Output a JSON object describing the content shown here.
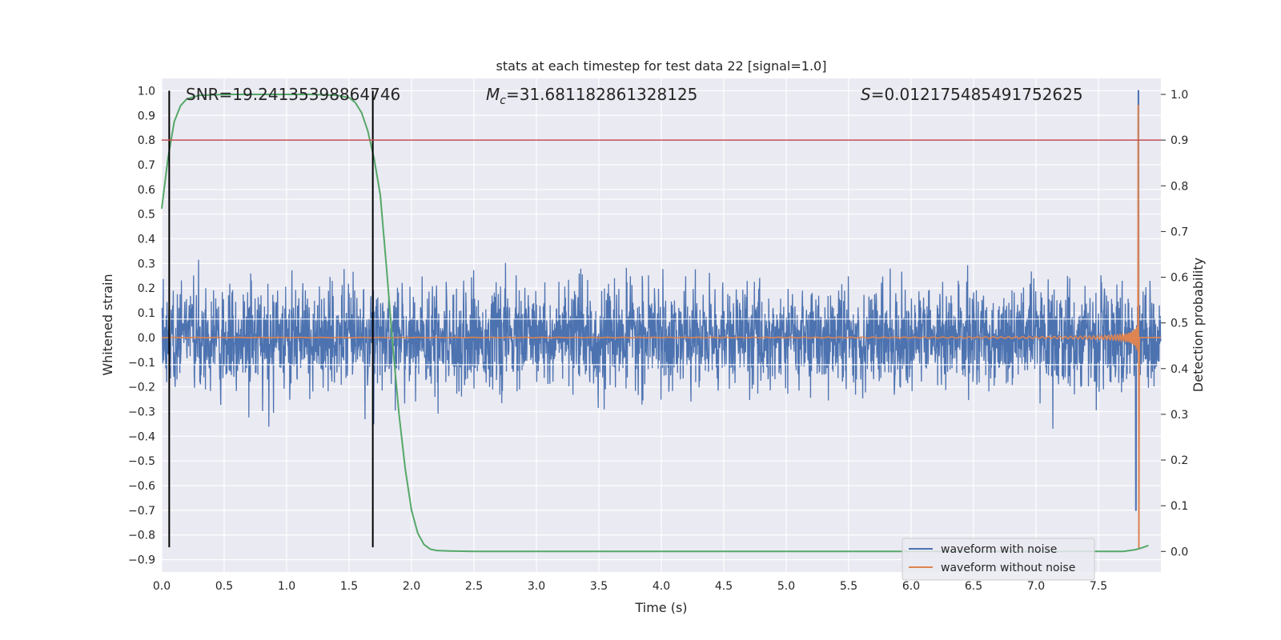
{
  "chart_data": {
    "type": "line",
    "title": "stats at each timestep for test data 22 [signal=1.0]",
    "xlabel": "Time (s)",
    "ylabel": "Whitened strain",
    "ylabel_right": "Detection probability",
    "xlim": [
      0.0,
      8.0
    ],
    "ylim": [
      -0.95,
      1.05
    ],
    "ylim_right": [
      -0.045,
      1.035
    ],
    "grid": true,
    "legend_position": "lower-right",
    "x_ticks": [
      "0.0",
      "0.5",
      "1.0",
      "1.5",
      "2.0",
      "2.5",
      "3.0",
      "3.5",
      "4.0",
      "4.5",
      "5.0",
      "5.5",
      "6.0",
      "6.5",
      "7.0",
      "7.5"
    ],
    "y_ticks": [
      "1.0",
      "0.9",
      "0.8",
      "0.7",
      "0.6",
      "0.5",
      "0.4",
      "0.3",
      "0.2",
      "0.1",
      "0.0",
      "−0.1",
      "−0.2",
      "−0.3",
      "−0.4",
      "−0.5",
      "−0.6",
      "−0.7",
      "−0.8",
      "−0.9"
    ],
    "y_ticks_right": [
      "1.0",
      "0.9",
      "0.8",
      "0.7",
      "0.6",
      "0.5",
      "0.4",
      "0.3",
      "0.2",
      "0.1",
      "0.0"
    ],
    "annotations": {
      "snr": "SNR=19.24135398864746",
      "mc_symbol": "M",
      "mc_sub": "c",
      "mc_value": "=31.681182861328125",
      "s_symbol": "S",
      "s_value": "=0.012175485491752625"
    },
    "series": [
      {
        "name": "waveform with noise",
        "color": "#4c72b0",
        "axis": "left",
        "noise_amplitude_typical": 0.12,
        "noise_amplitude_peak": 0.43,
        "signal_peak_x": 7.82,
        "signal_peak_y": 1.0,
        "signal_trough_y": -0.7
      },
      {
        "name": "waveform without noise",
        "color": "#dd8452",
        "axis": "left",
        "chirp_peak_x": 7.82,
        "chirp_peak_y": 0.94,
        "chirp_trough_y": -0.85
      },
      {
        "name": "",
        "color": "#55a868",
        "axis": "right",
        "x": [
          0.0,
          0.05,
          0.1,
          0.15,
          0.2,
          0.3,
          0.5,
          0.8,
          1.0,
          1.2,
          1.4,
          1.5,
          1.55,
          1.6,
          1.65,
          1.7,
          1.75,
          1.8,
          1.85,
          1.9,
          1.95,
          2.0,
          2.05,
          2.1,
          2.15,
          2.2,
          2.3,
          2.5,
          3.0,
          5.0,
          7.0,
          7.6,
          7.7,
          7.75,
          7.8,
          7.85,
          7.9
        ],
        "y": [
          0.75,
          0.86,
          0.94,
          0.975,
          0.99,
          0.998,
          1.0,
          1.0,
          1.0,
          1.0,
          0.998,
          0.993,
          0.982,
          0.96,
          0.92,
          0.86,
          0.78,
          0.62,
          0.45,
          0.3,
          0.18,
          0.09,
          0.04,
          0.015,
          0.005,
          0.002,
          0.001,
          0.0,
          0.0,
          0.0,
          0.0,
          0.0,
          0.0,
          0.002,
          0.004,
          0.008,
          0.013
        ]
      }
    ],
    "threshold_line": {
      "color": "#c44e52",
      "y_right": 0.9
    },
    "vertical_markers": [
      {
        "x": 0.06,
        "color": "#000000"
      },
      {
        "x": 1.69,
        "color": "#000000"
      }
    ],
    "vertical_markers_y_range": [
      -0.85,
      1.0
    ]
  }
}
